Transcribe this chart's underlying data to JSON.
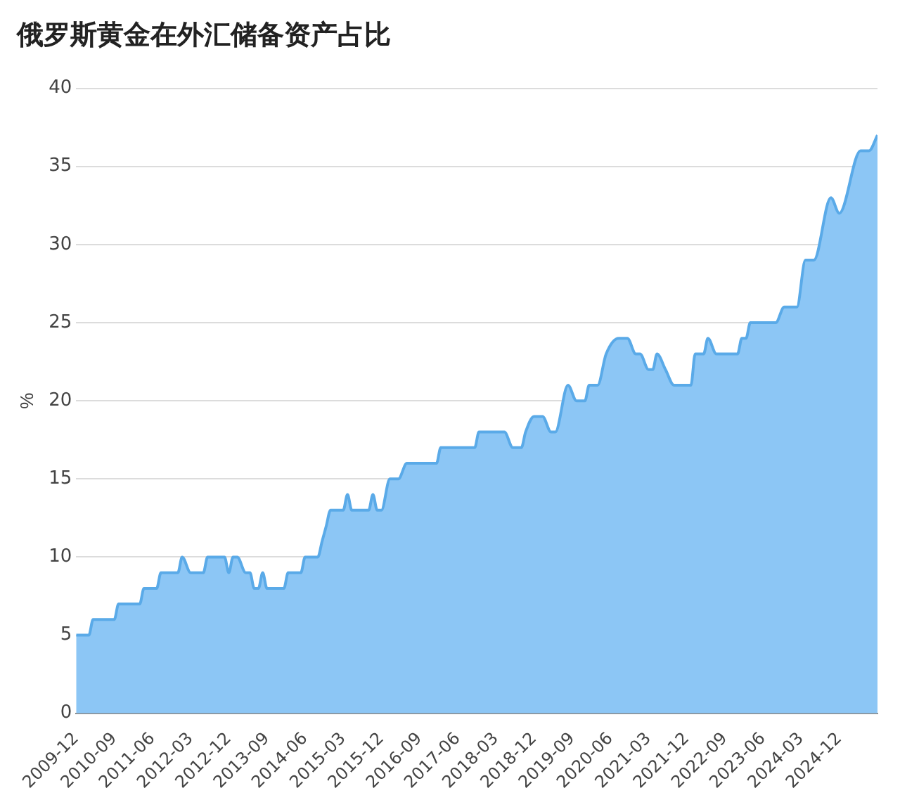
{
  "chart_data": {
    "type": "area",
    "title": "俄罗斯黄金在外汇储备资产占比",
    "ylabel": "%",
    "x": [
      "2009-12",
      "2010-03",
      "2010-04",
      "2010-09",
      "2010-10",
      "2011-03",
      "2011-04",
      "2011-07",
      "2011-08",
      "2011-12",
      "2012-01",
      "2012-03",
      "2012-06",
      "2012-07",
      "2012-11",
      "2012-12",
      "2013-01",
      "2013-02",
      "2013-04",
      "2013-05",
      "2013-06",
      "2013-07",
      "2013-08",
      "2013-09",
      "2014-01",
      "2014-02",
      "2014-05",
      "2014-06",
      "2014-09",
      "2014-10",
      "2014-11",
      "2014-12",
      "2015-03",
      "2015-04",
      "2015-05",
      "2015-09",
      "2015-10",
      "2015-11",
      "2015-12",
      "2016-02",
      "2016-04",
      "2016-06",
      "2017-01",
      "2017-02",
      "2017-10",
      "2017-11",
      "2018-05",
      "2018-07",
      "2018-09",
      "2018-10",
      "2018-12",
      "2019-02",
      "2019-04",
      "2019-05",
      "2019-08",
      "2019-10",
      "2019-12",
      "2020-01",
      "2020-03",
      "2020-05",
      "2020-08",
      "2020-10",
      "2020-12",
      "2021-01",
      "2021-03",
      "2021-04",
      "2021-05",
      "2021-07",
      "2021-09",
      "2022-01",
      "2022-02",
      "2022-04",
      "2022-05",
      "2022-07",
      "2022-12",
      "2023-01",
      "2023-02",
      "2023-03",
      "2023-09",
      "2023-11",
      "2024-02",
      "2024-04",
      "2024-06",
      "2024-10",
      "2024-12",
      "2025-05",
      "2025-07",
      "2025-09"
    ],
    "values": [
      5,
      5,
      6,
      6,
      7,
      7,
      8,
      8,
      9,
      9,
      10,
      9,
      9,
      10,
      10,
      9,
      10,
      10,
      9,
      9,
      8,
      8,
      9,
      8,
      8,
      9,
      9,
      10,
      10,
      11,
      12,
      13,
      13,
      14,
      13,
      13,
      14,
      13,
      13,
      15,
      15,
      16,
      16,
      17,
      17,
      18,
      18,
      17,
      17,
      18,
      19,
      19,
      18,
      18,
      21,
      20,
      20,
      21,
      21,
      23,
      24,
      24,
      23,
      23,
      22,
      22,
      23,
      22,
      21,
      21,
      23,
      23,
      24,
      23,
      23,
      24,
      24,
      25,
      25,
      26,
      26,
      29,
      29,
      33,
      32,
      36,
      36,
      37
    ],
    "color": "#8cc6f5",
    "xlim": [
      "2009-12",
      "2025-09"
    ],
    "xticks": [
      "2009-12",
      "2010-09",
      "2011-06",
      "2012-03",
      "2012-12",
      "2013-09",
      "2014-06",
      "2015-03",
      "2015-12",
      "2016-09",
      "2017-06",
      "2018-03",
      "2018-12",
      "2019-09",
      "2020-06",
      "2021-03",
      "2021-12",
      "2022-09",
      "2023-06",
      "2024-03",
      "2024-12"
    ],
    "ylim": [
      0,
      40
    ],
    "yticks": [
      0,
      5,
      10,
      15,
      20,
      25,
      30,
      35,
      40
    ],
    "grid": "y"
  }
}
